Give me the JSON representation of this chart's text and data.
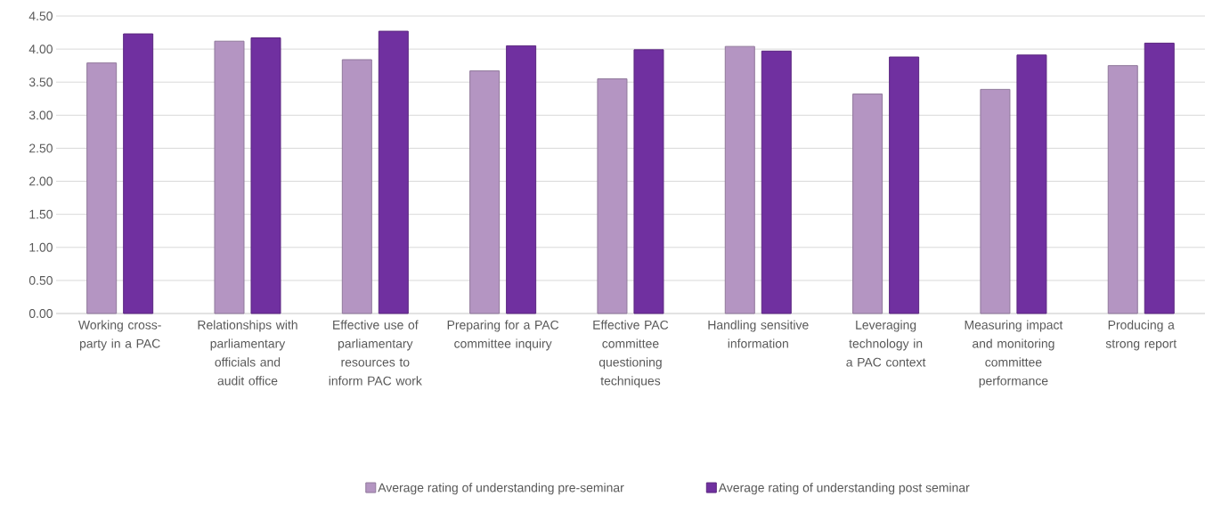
{
  "chart_data": {
    "type": "bar",
    "categories": [
      "Working cross-party in a PAC",
      "Relationships with parliamentary officials and audit office",
      "Effective use of parliamentary resources to inform PAC work",
      "Preparing for a PAC committee inquiry",
      "Effective PAC committee questioning techniques",
      "Handling sensitive information",
      "Leveraging technology in a PAC context",
      "Measuring impact and monitoring committee performance",
      "Producing a strong report"
    ],
    "series": [
      {
        "name": "Average rating of understanding pre-seminar",
        "color": "#b495c2",
        "values": [
          3.79,
          4.12,
          3.84,
          3.67,
          3.55,
          4.04,
          3.32,
          3.39,
          3.75
        ]
      },
      {
        "name": "Average rating of understanding post seminar",
        "color": "#7030a0",
        "values": [
          4.23,
          4.17,
          4.27,
          4.05,
          3.99,
          3.97,
          3.88,
          3.91,
          4.09
        ]
      }
    ],
    "ylim": [
      0,
      4.5
    ],
    "yticks": [
      {
        "value": 0,
        "label": "0.00"
      },
      {
        "value": 0.5,
        "label": "0.50"
      },
      {
        "value": 1,
        "label": "1.00"
      },
      {
        "value": 1.5,
        "label": "1.50"
      },
      {
        "value": 2,
        "label": "2.00"
      },
      {
        "value": 2.5,
        "label": "2.50"
      },
      {
        "value": 3,
        "label": "3.00"
      },
      {
        "value": 3.5,
        "label": "3.50"
      },
      {
        "value": 4,
        "label": "4.00"
      },
      {
        "value": 4.5,
        "label": "4.50"
      }
    ],
    "grid": "y",
    "legend": "bottom"
  }
}
